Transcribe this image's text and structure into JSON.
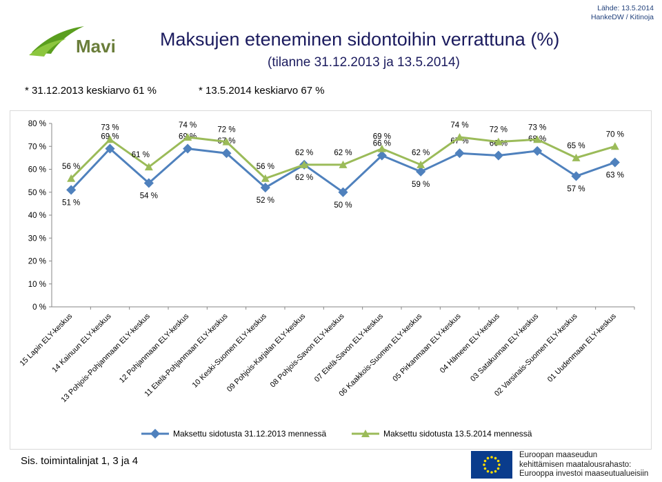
{
  "header": {
    "source_line1": "Lähde: 13.5.2014",
    "source_line2": "HankeDW / Kitinoja",
    "logo_text": "Mavi",
    "title": "Maksujen eteneminen sidontoihin verrattuna (%)",
    "subtitle": "(tilanne 31.12.2013 ja 13.5.2014)",
    "avg1": "* 31.12.2013 keskiarvo 61 %",
    "avg2": "* 13.5.2014 keskiarvo 67 %"
  },
  "footer": {
    "note": "Sis. toimintalinjat 1, 3 ja 4",
    "eu_line1": "Euroopan maaseudun",
    "eu_line2": "kehittämisen maatalousrahasto:",
    "eu_line3": "Eurooppa investoi maaseutualueisiin"
  },
  "colors": {
    "series1": "#4f81bd",
    "series2": "#9bbb59",
    "title": "#1b1b5e",
    "eu_blue": "#0a3c8c",
    "eu_star": "#ffdd00",
    "logo_green": "#5a9e1e"
  },
  "chart_data": {
    "type": "line",
    "categories": [
      "15 Lapin ELY-keskus",
      "14 Kainuun ELY-keskus",
      "13 Pohjois-Pohjanmaan ELY-keskus",
      "12 Pohjanmaan ELY-keskus",
      "11 Etelä-Pohjanmaan ELY-keskus",
      "10 Keski-Suomen ELY-keskus",
      "09 Pohjois-Karjalan ELY-keskus",
      "08 Pohjois-Savon ELY-keskus",
      "07 Etelä-Savon ELY-keskus",
      "06 Kaakkois-Suomen ELY-keskus",
      "05 Pirkanmaan ELY-keskus",
      "04 Hämeen ELY-keskus",
      "03 Satakunnan ELY-keskus",
      "02 Varsinais-Suomen ELY-keskus",
      "01 Uudenmaan ELY-keskus"
    ],
    "series": [
      {
        "name": "Maksettu sidotusta 31.12.2013 mennessä",
        "values": [
          51,
          69,
          54,
          69,
          67,
          52,
          62,
          50,
          66,
          59,
          67,
          66,
          68,
          57,
          63
        ],
        "labels": [
          "51 %",
          "69 %",
          "54 %",
          "69 %",
          "67 %",
          "52 %",
          "62 %",
          "50 %",
          "66 %",
          "59 %",
          "67 %",
          "66 %",
          "68 %",
          "57 %",
          "63 %"
        ]
      },
      {
        "name": "Maksettu sidotusta 13.5.2014 mennessä",
        "values": [
          56,
          73,
          61,
          74,
          72,
          56,
          62,
          62,
          69,
          62,
          74,
          72,
          73,
          65,
          70
        ],
        "labels": [
          "56 %",
          "73 %",
          "61 %",
          "74 %",
          "72 %",
          "56 %",
          "62 %",
          "62 %",
          "69 %",
          "62 %",
          "74 %",
          "72 %",
          "73 %",
          "65 %",
          "70 %"
        ]
      }
    ],
    "y_ticks": [
      "0 %",
      "10 %",
      "20 %",
      "30 %",
      "40 %",
      "50 %",
      "60 %",
      "70 %",
      "80 %"
    ],
    "ylim": [
      0,
      80
    ],
    "grid": false,
    "legend_position": "bottom"
  }
}
